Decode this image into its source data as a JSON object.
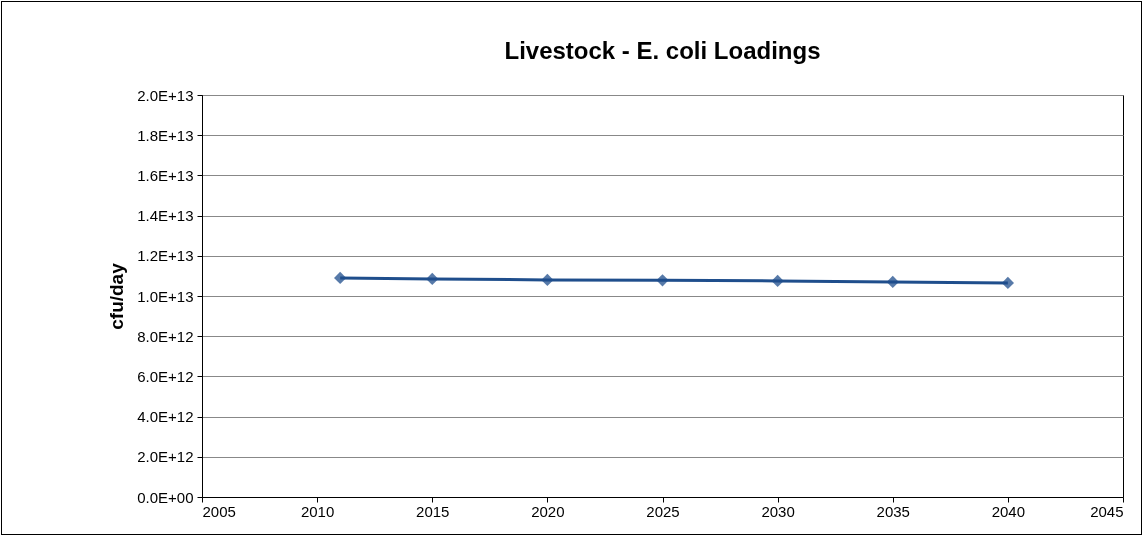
{
  "chart_data": {
    "type": "line",
    "title": "Livestock - E. coli Loadings",
    "ylabel": "cfu/day",
    "x": [
      2011,
      2015,
      2020,
      2025,
      2030,
      2035,
      2040
    ],
    "series": [
      {
        "color": "#1f4e8c",
        "values": [
          10900000000000,
          10850000000000,
          10800000000000,
          10780000000000,
          10750000000000,
          10700000000000,
          10650000000000
        ]
      }
    ],
    "xlim": [
      2005,
      2045
    ],
    "xticks": [
      2005,
      2010,
      2015,
      2020,
      2025,
      2030,
      2035,
      2040,
      2045
    ],
    "ylim": [
      0,
      20000000000000
    ],
    "yticks": [
      {
        "value": 0,
        "label": "0.0E+00"
      },
      {
        "value": 2000000000000,
        "label": "2.0E+12"
      },
      {
        "value": 4000000000000,
        "label": "4.0E+12"
      },
      {
        "value": 6000000000000,
        "label": "6.0E+12"
      },
      {
        "value": 8000000000000,
        "label": "8.0E+12"
      },
      {
        "value": 10000000000000,
        "label": "1.0E+13"
      },
      {
        "value": 12000000000000,
        "label": "1.2E+13"
      },
      {
        "value": 14000000000000,
        "label": "1.4E+13"
      },
      {
        "value": 16000000000000,
        "label": "1.6E+13"
      },
      {
        "value": 18000000000000,
        "label": "1.8E+13"
      },
      {
        "value": 20000000000000,
        "label": "2.0E+13"
      }
    ],
    "grid": "y",
    "marker": "diamond",
    "line_style": "solid"
  }
}
